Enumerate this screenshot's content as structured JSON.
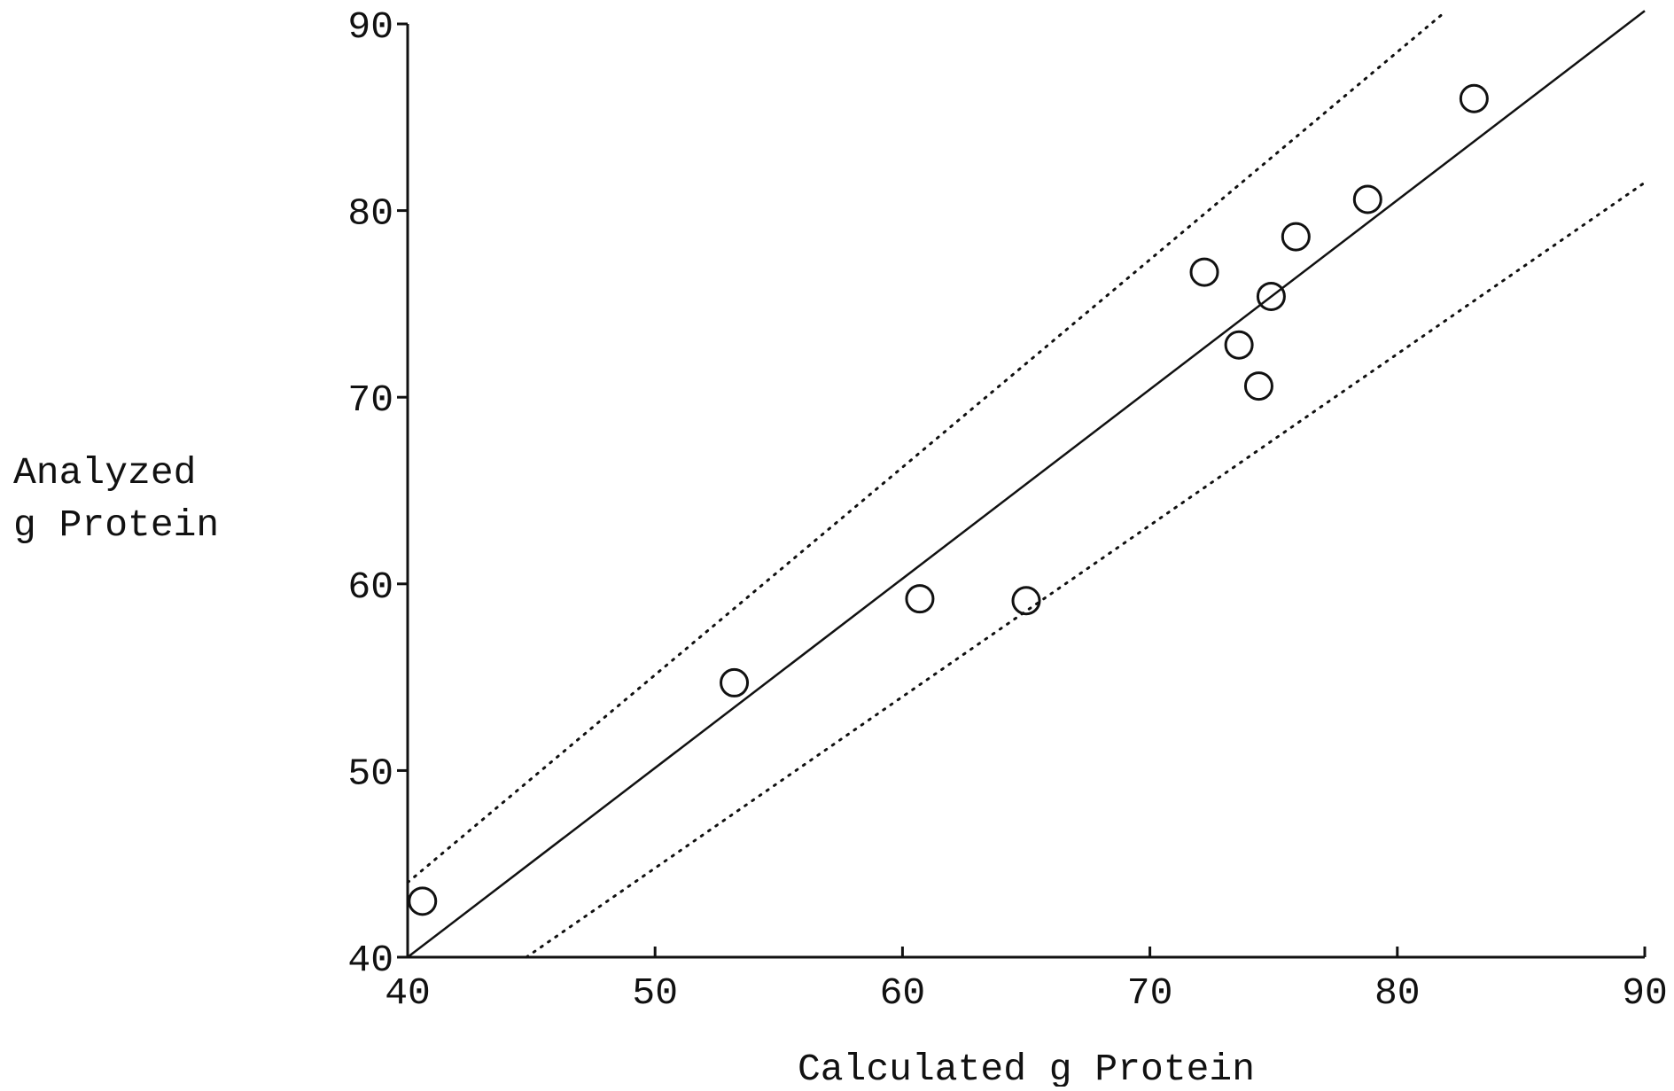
{
  "chart_data": {
    "type": "scatter",
    "title": "",
    "xlabel": "Calculated g Protein",
    "ylabel": [
      "Analyzed",
      "g Protein"
    ],
    "xlim": [
      40,
      90
    ],
    "ylim": [
      40,
      90
    ],
    "xticks": [
      "40",
      "50",
      "60",
      "70",
      "80",
      "90"
    ],
    "yticks": [
      "40",
      "50",
      "60",
      "70",
      "80",
      "90"
    ],
    "grid": false,
    "marker": "open-circle",
    "colors": {
      "ink": "#111111",
      "background": "#ffffff"
    },
    "points": [
      {
        "x": 40.6,
        "y": 43.0
      },
      {
        "x": 53.2,
        "y": 54.7
      },
      {
        "x": 60.7,
        "y": 59.2
      },
      {
        "x": 65.0,
        "y": 59.1
      },
      {
        "x": 72.2,
        "y": 76.7
      },
      {
        "x": 73.6,
        "y": 72.8
      },
      {
        "x": 74.4,
        "y": 70.6
      },
      {
        "x": 74.9,
        "y": 75.4
      },
      {
        "x": 75.9,
        "y": 78.6
      },
      {
        "x": 78.8,
        "y": 80.6
      },
      {
        "x": 83.1,
        "y": 86.0
      }
    ],
    "lines": [
      {
        "style": "solid",
        "from": {
          "x": 40,
          "y": 40
        },
        "to": {
          "x": 90,
          "y": 90.7
        }
      },
      {
        "style": "dotted",
        "from": {
          "x": 40,
          "y": 44.0
        },
        "to": {
          "x": 81.8,
          "y": 90.5
        }
      },
      {
        "style": "dotted",
        "from": {
          "x": 44.8,
          "y": 40
        },
        "to": {
          "x": 90,
          "y": 81.5
        }
      }
    ]
  }
}
